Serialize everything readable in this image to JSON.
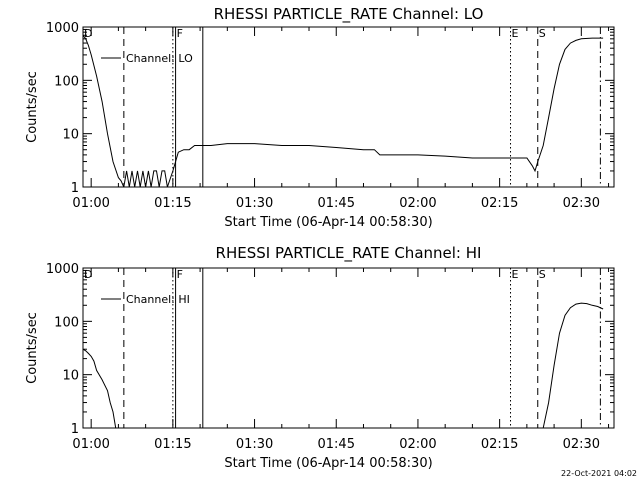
{
  "chart_data": [
    {
      "type": "line",
      "title": "RHESSI PARTICLE_RATE Channel: LO",
      "xlabel": "Start Time (06-Apr-14 00:58:30)",
      "ylabel": "Counts/sec",
      "yscale": "log",
      "ylim": [
        1,
        1000
      ],
      "xlim": [
        "00:58:30",
        "02:36:00"
      ],
      "x_ticks": [
        "01:00",
        "01:15",
        "01:30",
        "01:45",
        "02:00",
        "02:15",
        "02:30"
      ],
      "y_ticks": [
        "1",
        "10",
        "100",
        "1000"
      ],
      "legend": {
        "placement": "top-left"
      },
      "series": [
        {
          "name": "Channel: LO",
          "x": [
            "00:58:30",
            "00:59:00",
            "00:59:30",
            "01:00:00",
            "01:01:00",
            "01:02:00",
            "01:03:00",
            "01:04:00",
            "01:05:00",
            "01:05:30",
            "01:06:00",
            "01:06:30",
            "01:07:00",
            "01:07:30",
            "01:08:00",
            "01:08:30",
            "01:09:00",
            "01:09:30",
            "01:10:00",
            "01:10:30",
            "01:11:00",
            "01:11:30",
            "01:12:00",
            "01:12:30",
            "01:13:00",
            "01:13:30",
            "01:14:00",
            "01:15:00",
            "01:16:00",
            "01:17:00",
            "01:18:00",
            "01:19:00",
            "01:20:00",
            "01:21:00",
            "01:22:00",
            "01:25:00",
            "01:30:00",
            "01:35:00",
            "01:40:00",
            "01:45:00",
            "01:50:00",
            "01:52:00",
            "01:53:00",
            "02:00:00",
            "02:05:00",
            "02:10:00",
            "02:15:00",
            "02:20:00",
            "02:21:00",
            "02:21:30",
            "02:22:00",
            "02:23:00",
            "02:24:00",
            "02:25:00",
            "02:26:00",
            "02:27:00",
            "02:28:00",
            "02:29:00",
            "02:30:00",
            "02:32:00",
            "02:34:00"
          ],
          "values": [
            700,
            600,
            450,
            300,
            120,
            40,
            10,
            3,
            1.5,
            1.3,
            1.0,
            2.0,
            1.0,
            2.0,
            1.0,
            2.0,
            1.0,
            2.0,
            1.0,
            2.0,
            1.0,
            2.0,
            2.0,
            1.0,
            2.0,
            2.0,
            1.0,
            2.0,
            4.5,
            5.0,
            5.0,
            6.0,
            6.0,
            6.0,
            6.0,
            6.5,
            6.5,
            6.0,
            6.0,
            5.5,
            5.0,
            5.0,
            4.0,
            4.0,
            3.8,
            3.5,
            3.5,
            3.5,
            2.5,
            2.0,
            3.0,
            6.0,
            20,
            70,
            200,
            380,
            500,
            560,
            600,
            620,
            620
          ]
        }
      ],
      "annotations": [
        {
          "label": "D",
          "x": "00:58:30",
          "style": "solid"
        },
        {
          "label": "",
          "x": "01:06:00",
          "style": "dashed"
        },
        {
          "label": "",
          "x": "01:15:00",
          "style": "dotted"
        },
        {
          "label": "F",
          "x": "01:15:30",
          "style": "solid"
        },
        {
          "label": "",
          "x": "01:20:30",
          "style": "solid"
        },
        {
          "label": "E",
          "x": "02:17:00",
          "style": "dotted"
        },
        {
          "label": "S",
          "x": "02:22:00",
          "style": "dashed"
        },
        {
          "label": "",
          "x": "02:33:30",
          "style": "dashdot"
        }
      ]
    },
    {
      "type": "line",
      "title": "RHESSI PARTICLE_RATE Channel: HI",
      "xlabel": "Start Time (06-Apr-14 00:58:30)",
      "ylabel": "Counts/sec",
      "yscale": "log",
      "ylim": [
        1,
        1000
      ],
      "xlim": [
        "00:58:30",
        "02:36:00"
      ],
      "x_ticks": [
        "01:00",
        "01:15",
        "01:30",
        "01:45",
        "02:00",
        "02:15",
        "02:30"
      ],
      "y_ticks": [
        "1",
        "10",
        "100",
        "1000"
      ],
      "legend": {
        "placement": "top-left"
      },
      "series": [
        {
          "name": "Channel: HI",
          "x": [
            "00:58:30",
            "00:59:00",
            "00:59:30",
            "01:00:00",
            "01:00:30",
            "01:01:00",
            "01:02:00",
            "01:03:00",
            "01:03:30",
            "01:04:00",
            "01:04:30"
          ],
          "values": [
            30,
            28,
            25,
            22,
            18,
            12,
            8,
            5,
            3,
            2,
            1.0
          ]
        },
        {
          "name": "Channel: HI",
          "x": [
            "02:23:00",
            "02:24:00",
            "02:25:00",
            "02:26:00",
            "02:27:00",
            "02:28:00",
            "02:29:00",
            "02:30:00",
            "02:31:00",
            "02:32:00",
            "02:33:00",
            "02:34:00"
          ],
          "values": [
            1.0,
            3,
            15,
            60,
            130,
            180,
            210,
            220,
            215,
            200,
            190,
            170
          ]
        }
      ],
      "annotations": [
        {
          "label": "D",
          "x": "00:58:30",
          "style": "solid"
        },
        {
          "label": "",
          "x": "01:06:00",
          "style": "dashed"
        },
        {
          "label": "",
          "x": "01:15:00",
          "style": "dotted"
        },
        {
          "label": "F",
          "x": "01:15:30",
          "style": "solid"
        },
        {
          "label": "",
          "x": "01:20:30",
          "style": "solid"
        },
        {
          "label": "E",
          "x": "02:17:00",
          "style": "dotted"
        },
        {
          "label": "S",
          "x": "02:22:00",
          "style": "dashed"
        },
        {
          "label": "",
          "x": "02:33:30",
          "style": "dashdot"
        }
      ]
    }
  ],
  "footer": {
    "timestamp": "22-Oct-2021 04:02"
  }
}
